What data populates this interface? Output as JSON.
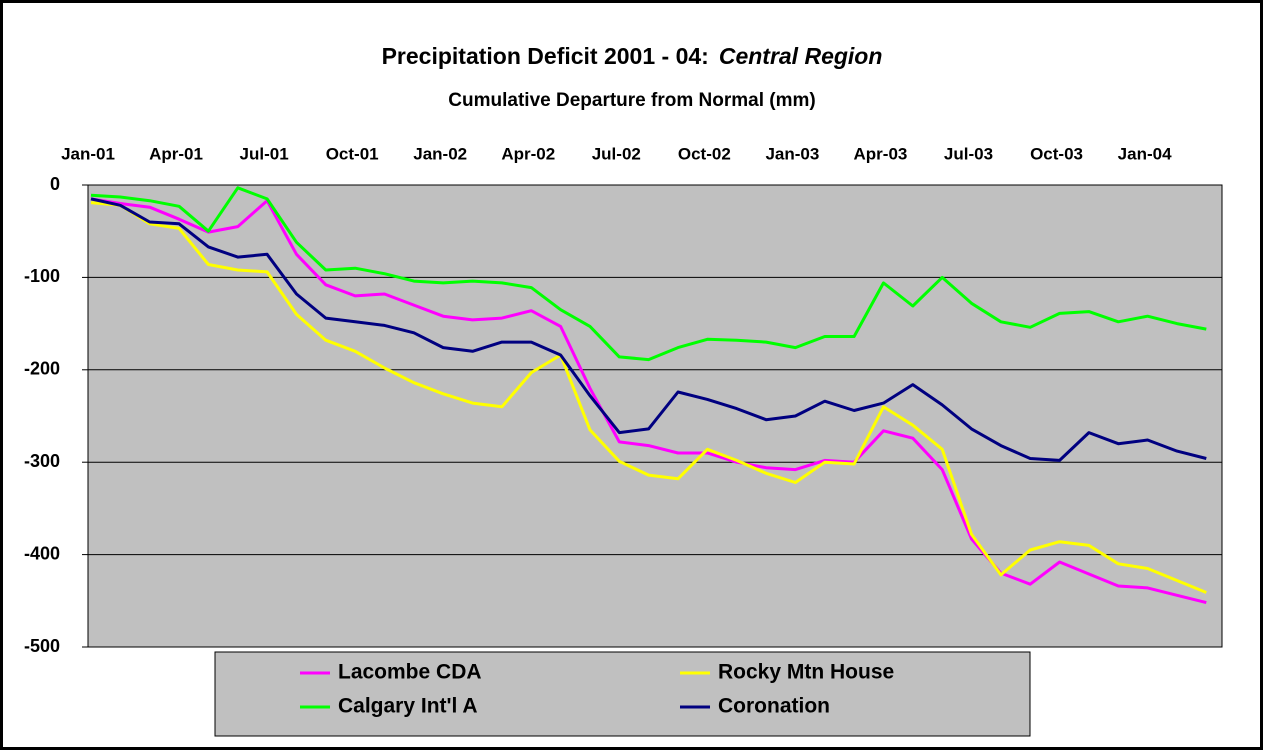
{
  "chart_data": {
    "type": "line",
    "title": "Precipitation Deficit 2001 - 04:",
    "title_emphasis": "Central Region",
    "subtitle": "Cumulative Departure from Normal (mm)",
    "categories": [
      "Jan-01",
      null,
      null,
      "Apr-01",
      null,
      null,
      "Jul-01",
      null,
      null,
      "Oct-01",
      null,
      null,
      "Jan-02",
      null,
      null,
      "Apr-02",
      null,
      null,
      "Jul-02",
      null,
      null,
      "Oct-02",
      null,
      null,
      "Jan-03",
      null,
      null,
      "Apr-03",
      null,
      null,
      "Jul-03",
      null,
      null,
      "Oct-03",
      null,
      null,
      "Jan-04",
      null,
      null
    ],
    "ylim": [
      -500,
      0
    ],
    "yticks": [
      0,
      -100,
      -200,
      -300,
      -400,
      -500
    ],
    "grid": true,
    "legend": "bottom",
    "series": [
      {
        "name": "Lacombe CDA",
        "color": "#ff00ff",
        "values": [
          -15,
          -20,
          -24,
          -37,
          -51,
          -45,
          -17,
          -75,
          -108,
          -120,
          -118,
          -130,
          -142,
          -146,
          -144,
          -136,
          -153,
          -220,
          -278,
          -282,
          -290,
          -290,
          -300,
          -306,
          -308,
          -298,
          -300,
          -266,
          -274,
          -308,
          -383,
          -420,
          -432,
          -408,
          -421,
          -434,
          -436,
          -444,
          -452
        ]
      },
      {
        "name": "Rocky Mtn House",
        "color": "#ffff00",
        "values": [
          -19,
          -22,
          -42,
          -47,
          -86,
          -92,
          -94,
          -140,
          -168,
          -180,
          -198,
          -214,
          -226,
          -236,
          -240,
          -203,
          -184,
          -265,
          -299,
          -314,
          -318,
          -286,
          -298,
          -312,
          -322,
          -300,
          -302,
          -240,
          -260,
          -286,
          -378,
          -422,
          -395,
          -386,
          -390,
          -410,
          -415,
          -428,
          -441
        ]
      },
      {
        "name": "Calgary Int'l A",
        "color": "#00ff00",
        "values": [
          -11,
          -13,
          -17,
          -23,
          -50,
          -3,
          -15,
          -62,
          -92,
          -90,
          -96,
          -104,
          -106,
          -104,
          -106,
          -111,
          -135,
          -153,
          -186,
          -189,
          -176,
          -167,
          -168,
          -170,
          -176,
          -164,
          -164,
          -106,
          -131,
          -100,
          -128,
          -148,
          -154,
          -139,
          -137,
          -148,
          -142,
          -150,
          -156
        ]
      },
      {
        "name": "Coronation",
        "color": "#000080",
        "values": [
          -15,
          -22,
          -40,
          -42,
          -67,
          -78,
          -75,
          -118,
          -144,
          -148,
          -152,
          -160,
          -176,
          -180,
          -170,
          -170,
          -184,
          -228,
          -268,
          -264,
          -224,
          -232,
          -242,
          -254,
          -250,
          -234,
          -244,
          -236,
          -216,
          -238,
          -264,
          -282,
          -296,
          -298,
          -268,
          -280,
          -276,
          -288,
          -296
        ]
      }
    ]
  }
}
